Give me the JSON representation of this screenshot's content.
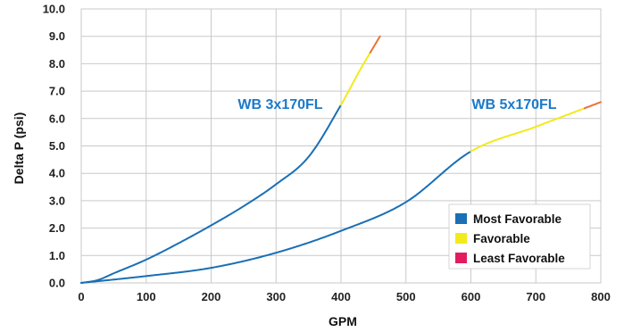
{
  "chart_data": {
    "type": "line",
    "xlabel": "GPM",
    "ylabel": "Delta P (psi)",
    "xlim": [
      0,
      800
    ],
    "ylim": [
      0,
      10
    ],
    "x_ticks": [
      "0",
      "100",
      "200",
      "300",
      "400",
      "500",
      "600",
      "700",
      "800"
    ],
    "y_ticks": [
      "0.0",
      "1.0",
      "2.0",
      "3.0",
      "4.0",
      "5.0",
      "6.0",
      "7.0",
      "8.0",
      "9.0",
      "10.0"
    ],
    "grid": true,
    "legend_position": "bottom-right",
    "legend": [
      {
        "label": "Most Favorable",
        "color": "#1a6fb5"
      },
      {
        "label": "Favorable",
        "color": "#f2ea1c"
      },
      {
        "label": "Least Favorable",
        "color": "#e31c5f"
      }
    ],
    "series": [
      {
        "name": "WB 3x170FL",
        "label_color": "#1a7ac9",
        "points": [
          [
            0,
            0
          ],
          [
            25,
            0.1
          ],
          [
            50,
            0.35
          ],
          [
            100,
            0.85
          ],
          [
            150,
            1.45
          ],
          [
            200,
            2.1
          ],
          [
            250,
            2.8
          ],
          [
            300,
            3.6
          ],
          [
            350,
            4.6
          ],
          [
            400,
            6.5
          ],
          [
            430,
            7.8
          ],
          [
            460,
            9.0
          ]
        ],
        "segments": [
          {
            "rating": "Most Favorable",
            "from": 0,
            "to": 400,
            "color": "#1a6fb5"
          },
          {
            "rating": "Favorable",
            "from": 400,
            "to": 445,
            "color": "#f2ea1c"
          },
          {
            "rating": "Least Favorable",
            "from": 445,
            "to": 460,
            "color": "#e8733a"
          }
        ]
      },
      {
        "name": "WB 5x170FL",
        "label_color": "#1a7ac9",
        "points": [
          [
            0,
            0
          ],
          [
            100,
            0.25
          ],
          [
            200,
            0.55
          ],
          [
            300,
            1.1
          ],
          [
            400,
            1.9
          ],
          [
            500,
            2.95
          ],
          [
            600,
            4.8
          ],
          [
            700,
            5.7
          ],
          [
            800,
            6.6
          ]
        ],
        "segments": [
          {
            "rating": "Most Favorable",
            "from": 0,
            "to": 600,
            "color": "#1a6fb5"
          },
          {
            "rating": "Favorable",
            "from": 600,
            "to": 775,
            "color": "#f2ea1c"
          },
          {
            "rating": "Least Favorable",
            "from": 775,
            "to": 800,
            "color": "#e8733a"
          }
        ]
      }
    ]
  },
  "colors": {
    "grid": "#c9c9c9",
    "axis_text": "#222222",
    "background": "#ffffff"
  }
}
